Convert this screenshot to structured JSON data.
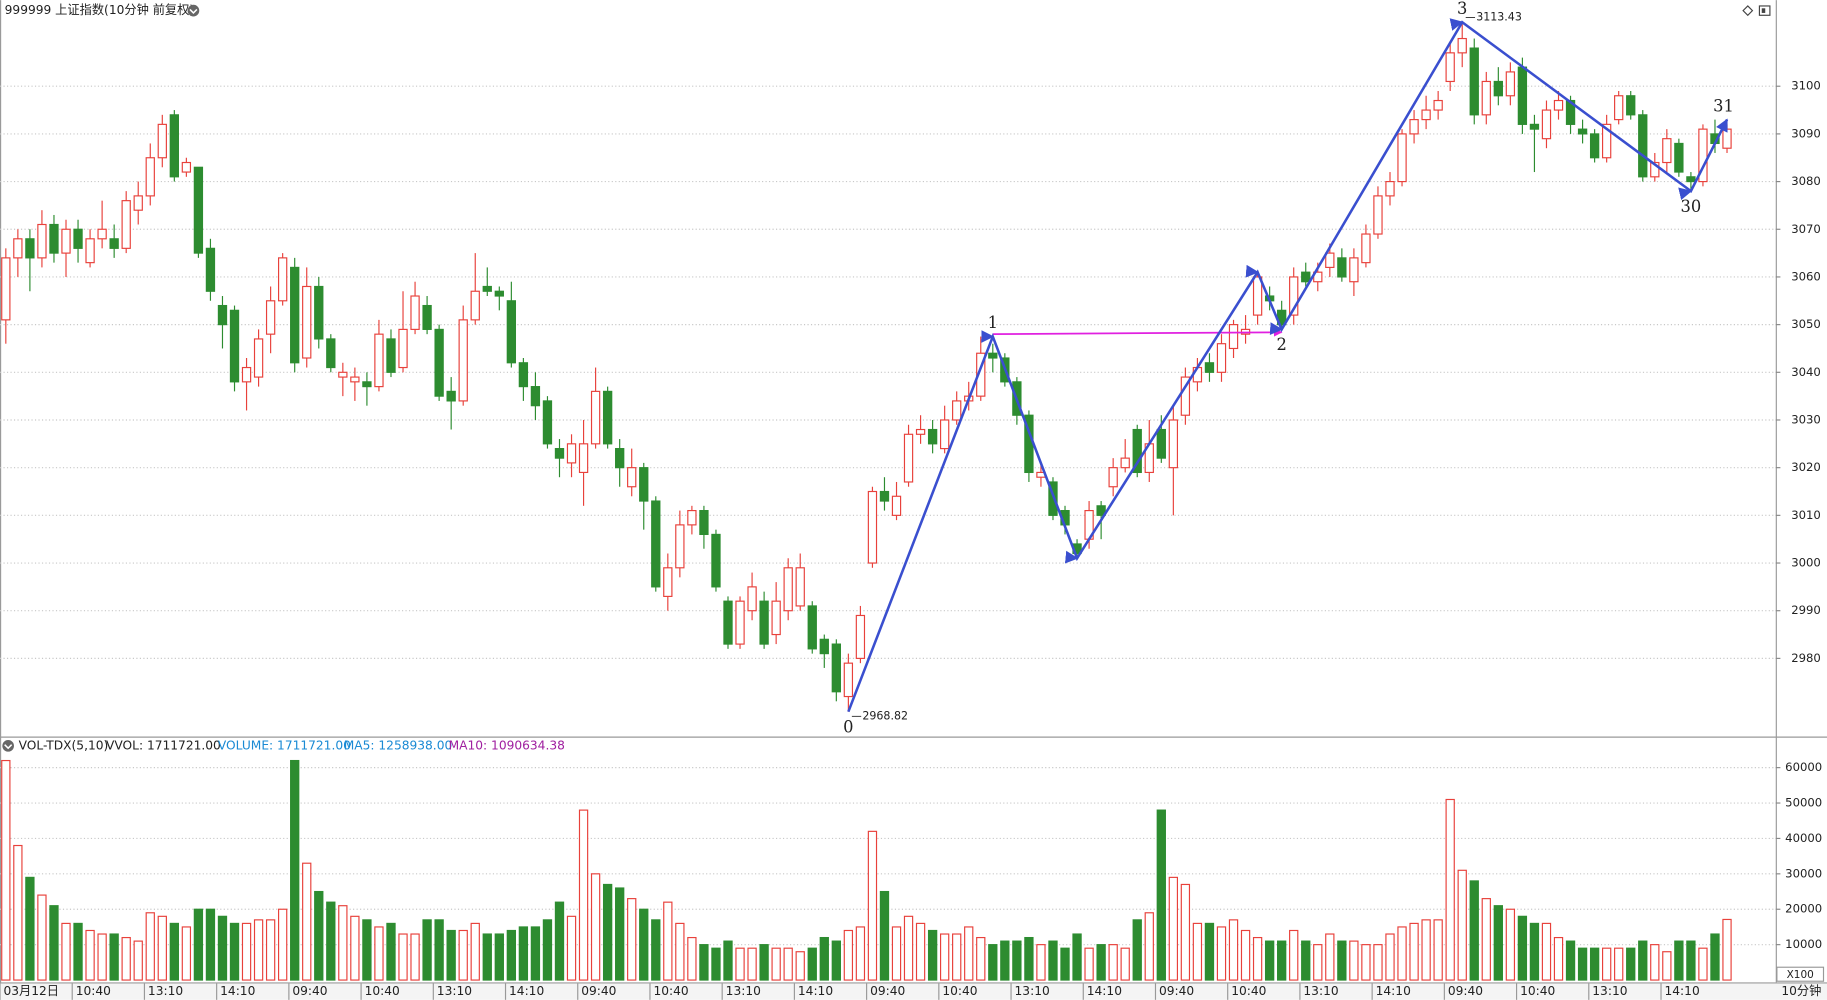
{
  "chart_data": [
    {
      "type": "candlestick",
      "title": "999999 上证指数(10分钟 前复权)",
      "up_color": "#e8413b",
      "down_color": "#2d8c30",
      "grid": true,
      "ylim": [
        2964.1,
        3116.1
      ],
      "yticks": [
        2980,
        2990,
        3000,
        3010,
        3020,
        3030,
        3040,
        3050,
        3060,
        3070,
        3080,
        3090,
        3100
      ],
      "candles": [
        [
          3051,
          3066,
          3046,
          3064
        ],
        [
          3064,
          3070,
          3060,
          3068
        ],
        [
          3068,
          3070,
          3057,
          3064
        ],
        [
          3064,
          3074,
          3062,
          3071
        ],
        [
          3071,
          3073,
          3063,
          3065
        ],
        [
          3065,
          3072,
          3060,
          3070
        ],
        [
          3070,
          3072,
          3063,
          3066
        ],
        [
          3063,
          3070,
          3062,
          3068
        ],
        [
          3068,
          3076,
          3066,
          3070
        ],
        [
          3068,
          3071,
          3064,
          3066
        ],
        [
          3066,
          3078,
          3065,
          3076
        ],
        [
          3074,
          3080,
          3071,
          3077
        ],
        [
          3077,
          3088,
          3075,
          3085
        ],
        [
          3085,
          3094,
          3083,
          3092
        ],
        [
          3094,
          3095,
          3080,
          3081
        ],
        [
          3082,
          3085,
          3081,
          3084
        ],
        [
          3083,
          3083,
          3064,
          3065
        ],
        [
          3066,
          3068,
          3055,
          3057
        ],
        [
          3054,
          3056,
          3045,
          3050
        ],
        [
          3053,
          3054,
          3036,
          3038
        ],
        [
          3038,
          3043,
          3032,
          3041
        ],
        [
          3039,
          3049,
          3037,
          3047
        ],
        [
          3048,
          3058,
          3044,
          3055
        ],
        [
          3055,
          3065,
          3054,
          3064
        ],
        [
          3062,
          3064,
          3040,
          3042
        ],
        [
          3043,
          3062,
          3041,
          3058
        ],
        [
          3058,
          3060,
          3045,
          3047
        ],
        [
          3047,
          3048,
          3040,
          3041
        ],
        [
          3039,
          3042,
          3035,
          3040
        ],
        [
          3038,
          3041,
          3034,
          3039
        ],
        [
          3038,
          3040,
          3033,
          3037
        ],
        [
          3037,
          3051,
          3036,
          3048
        ],
        [
          3047,
          3049,
          3039,
          3040
        ],
        [
          3041,
          3057,
          3040,
          3049
        ],
        [
          3049,
          3059,
          3048,
          3056
        ],
        [
          3054,
          3056,
          3048,
          3049
        ],
        [
          3049,
          3050,
          3034,
          3035
        ],
        [
          3036,
          3039,
          3028,
          3034
        ],
        [
          3034,
          3054,
          3033,
          3051
        ],
        [
          3051,
          3065,
          3050,
          3057
        ],
        [
          3058,
          3062,
          3056,
          3057
        ],
        [
          3057,
          3058,
          3053,
          3056
        ],
        [
          3055,
          3059,
          3041,
          3042
        ],
        [
          3042,
          3043,
          3034,
          3037
        ],
        [
          3037,
          3040,
          3030,
          3033
        ],
        [
          3034,
          3035,
          3024,
          3025
        ],
        [
          3024,
          3026,
          3018,
          3022
        ],
        [
          3021,
          3027,
          3018,
          3025
        ],
        [
          3019,
          3030,
          3012,
          3025
        ],
        [
          3025,
          3041,
          3024,
          3036
        ],
        [
          3036,
          3037,
          3024,
          3025
        ],
        [
          3024,
          3026,
          3016,
          3020
        ],
        [
          3016,
          3024,
          3014,
          3020
        ],
        [
          3020,
          3021,
          3007,
          3013
        ],
        [
          3013,
          3014,
          2994,
          2995
        ],
        [
          2993,
          3002,
          2990,
          2999
        ],
        [
          2999,
          3011,
          2997,
          3008
        ],
        [
          3008,
          3012,
          3006,
          3011
        ],
        [
          3011,
          3012,
          3003,
          3006
        ],
        [
          3006,
          3007,
          2994,
          2995
        ],
        [
          2992,
          2993,
          2982,
          2983
        ],
        [
          2983,
          2993,
          2982,
          2992
        ],
        [
          2990,
          2998,
          2988,
          2995
        ],
        [
          2992,
          2994,
          2982,
          2983
        ],
        [
          2985,
          2996,
          2983,
          2992
        ],
        [
          2990,
          3001,
          2988,
          2999
        ],
        [
          2991,
          3002,
          2990,
          2999
        ],
        [
          2991,
          2992,
          2981,
          2982
        ],
        [
          2984,
          2985,
          2978,
          2981
        ],
        [
          2983,
          2984,
          2971,
          2973
        ],
        [
          2972,
          2981,
          2968.82,
          2979
        ],
        [
          2980,
          2991,
          2979,
          2989
        ],
        [
          3000,
          3016,
          2999,
          3015
        ],
        [
          3015,
          3018,
          3011,
          3013
        ],
        [
          3010,
          3017,
          3009,
          3014
        ],
        [
          3017,
          3029,
          3016,
          3027
        ],
        [
          3027,
          3031,
          3025,
          3028
        ],
        [
          3028,
          3030,
          3023,
          3025
        ],
        [
          3024,
          3033,
          3023,
          3030
        ],
        [
          3030,
          3036,
          3029,
          3034
        ],
        [
          3034,
          3038,
          3032,
          3035
        ],
        [
          3035,
          3047.5,
          3034,
          3044
        ],
        [
          3044,
          3046,
          3040,
          3043
        ],
        [
          3043,
          3044,
          3037,
          3038
        ],
        [
          3038,
          3039,
          3029,
          3031
        ],
        [
          3031,
          3032,
          3017,
          3019
        ],
        [
          3018,
          3021,
          3016,
          3019
        ],
        [
          3017,
          3018,
          3009,
          3010
        ],
        [
          3011,
          3012,
          3006,
          3008
        ],
        [
          3004,
          3005,
          3001,
          3002
        ],
        [
          3005,
          3013,
          3003,
          3011
        ],
        [
          3012,
          3013,
          3005,
          3010
        ],
        [
          3016,
          3022,
          3014,
          3020
        ],
        [
          3020,
          3026,
          3019,
          3022
        ],
        [
          3028,
          3029,
          3018,
          3019
        ],
        [
          3019,
          3030,
          3017,
          3025
        ],
        [
          3028,
          3031,
          3021,
          3022
        ],
        [
          3020,
          3033,
          3010,
          3030
        ],
        [
          3031,
          3041,
          3029,
          3039
        ],
        [
          3038,
          3043,
          3036,
          3041
        ],
        [
          3042,
          3044,
          3038,
          3040
        ],
        [
          3040,
          3048,
          3038,
          3046
        ],
        [
          3045,
          3051,
          3043,
          3050
        ],
        [
          3048,
          3052,
          3046,
          3049
        ],
        [
          3052,
          3061,
          3050,
          3060
        ],
        [
          3056,
          3058,
          3053,
          3055
        ],
        [
          3053,
          3055,
          3049,
          3050
        ],
        [
          3052,
          3062,
          3050,
          3060
        ],
        [
          3061,
          3063,
          3058,
          3059
        ],
        [
          3059,
          3063,
          3057,
          3061
        ],
        [
          3062,
          3067,
          3060,
          3065
        ],
        [
          3064,
          3066,
          3059,
          3060
        ],
        [
          3059,
          3066,
          3056,
          3064
        ],
        [
          3063,
          3071,
          3062,
          3069
        ],
        [
          3069,
          3079,
          3068,
          3077
        ],
        [
          3077,
          3082,
          3075,
          3080
        ],
        [
          3080,
          3091,
          3079,
          3090
        ],
        [
          3090,
          3095,
          3088,
          3093
        ],
        [
          3093,
          3098,
          3091,
          3095
        ],
        [
          3095,
          3099,
          3093,
          3097
        ],
        [
          3101,
          3109,
          3099,
          3107
        ],
        [
          3107,
          3113.43,
          3104,
          3110
        ],
        [
          3108,
          3110,
          3092,
          3094
        ],
        [
          3094,
          3103,
          3092,
          3101
        ],
        [
          3101,
          3104,
          3096,
          3098
        ],
        [
          3098,
          3105,
          3096,
          3103
        ],
        [
          3104,
          3106,
          3090,
          3092
        ],
        [
          3092,
          3094,
          3082,
          3091
        ],
        [
          3089,
          3097,
          3087,
          3095
        ],
        [
          3095,
          3099,
          3093,
          3097
        ],
        [
          3097,
          3098,
          3090,
          3092
        ],
        [
          3091,
          3093,
          3088,
          3090
        ],
        [
          3090,
          3091,
          3084,
          3085
        ],
        [
          3085,
          3094,
          3084,
          3092
        ],
        [
          3093,
          3099,
          3092,
          3098
        ],
        [
          3098,
          3099,
          3093,
          3094
        ],
        [
          3094,
          3095,
          3080,
          3081
        ],
        [
          3081,
          3086,
          3080,
          3084
        ],
        [
          3084,
          3091,
          3082,
          3089
        ],
        [
          3088,
          3089,
          3081,
          3082
        ],
        [
          3081,
          3082,
          3078,
          3080
        ],
        [
          3080,
          3092,
          3079,
          3091
        ],
        [
          3090,
          3093,
          3086,
          3088
        ],
        [
          3087,
          3092,
          3086,
          3091
        ]
      ],
      "wave": {
        "color": "#3a4fcf",
        "x": [
          70,
          82,
          89,
          104,
          106,
          121,
          140,
          143
        ],
        "y": [
          2968.82,
          3047.5,
          3001,
          3061,
          3049,
          3113.43,
          3078,
          3093
        ],
        "labels": [
          "0",
          "1",
          null,
          null,
          "2",
          "3",
          "30",
          "31"
        ]
      },
      "level_line": {
        "color": "#e020e0",
        "x": [
          82,
          106
        ],
        "y": [
          3048,
          3048.4
        ]
      },
      "price_marks": [
        {
          "x": 70,
          "value": 2968.82
        },
        {
          "x": 121,
          "value": 3113.43
        }
      ]
    },
    {
      "type": "bar",
      "title": "VOL-TDX(5,10)",
      "header": [
        {
          "text": "VVOL: 1711721.00",
          "color": "#222222"
        },
        {
          "text": "VOLUME: 1711721.00",
          "color": "#1a8ad4"
        },
        {
          "text": "MA5: 1258938.00",
          "color": "#1a8ad4"
        },
        {
          "text": "MA10: 1090634.38",
          "color": "#a020a0"
        }
      ],
      "unit_label": "X100",
      "period_label": "10分钟",
      "grid": true,
      "ylim": [
        0,
        62200
      ],
      "yticks": [
        10000,
        20000,
        30000,
        40000,
        50000,
        60000
      ],
      "x_labels": [
        "03月12日",
        "10:40",
        "13:10",
        "14:10",
        "09:40",
        "10:40",
        "13:10",
        "14:10",
        "09:40",
        "10:40",
        "13:10",
        "14:10",
        "09:40",
        "10:40",
        "13:10",
        "14:10",
        "09:40",
        "10:40",
        "13:10",
        "14:10",
        "09:40",
        "10:40",
        "13:10",
        "14:10"
      ],
      "values": [
        62000,
        38000,
        29000,
        24000,
        21000,
        16000,
        16000,
        14000,
        13000,
        13000,
        12000,
        11000,
        19000,
        18000,
        16000,
        15000,
        20000,
        20000,
        18000,
        16000,
        16000,
        17000,
        17000,
        20000,
        62000,
        33000,
        25000,
        22000,
        21000,
        18000,
        17000,
        15000,
        16000,
        13000,
        13000,
        17000,
        17000,
        14000,
        14000,
        16000,
        13000,
        13000,
        14000,
        15000,
        15000,
        17000,
        22000,
        18000,
        48000,
        30000,
        27000,
        26000,
        23000,
        20000,
        17000,
        22000,
        16000,
        12000,
        10000,
        9000,
        11000,
        9000,
        9000,
        10000,
        9000,
        9000,
        8000,
        9000,
        12000,
        11000,
        14000,
        15000,
        42000,
        25000,
        15000,
        18000,
        16000,
        14000,
        13000,
        13000,
        15000,
        12000,
        10000,
        11000,
        11000,
        12000,
        10000,
        11000,
        9000,
        13000,
        9000,
        10000,
        10000,
        9000,
        17000,
        19000,
        48000,
        29000,
        27000,
        16000,
        16000,
        15000,
        17000,
        14000,
        12000,
        11000,
        11000,
        14000,
        11000,
        10000,
        13000,
        11000,
        11000,
        10000,
        10000,
        13000,
        15000,
        16000,
        17000,
        17000,
        51000,
        31000,
        28000,
        23000,
        21000,
        20000,
        18000,
        16000,
        16000,
        12000,
        11000,
        9000,
        9000,
        9000,
        9000,
        9000,
        11000,
        10000,
        8000,
        11000,
        11000,
        9000,
        13000,
        17117
      ]
    }
  ]
}
